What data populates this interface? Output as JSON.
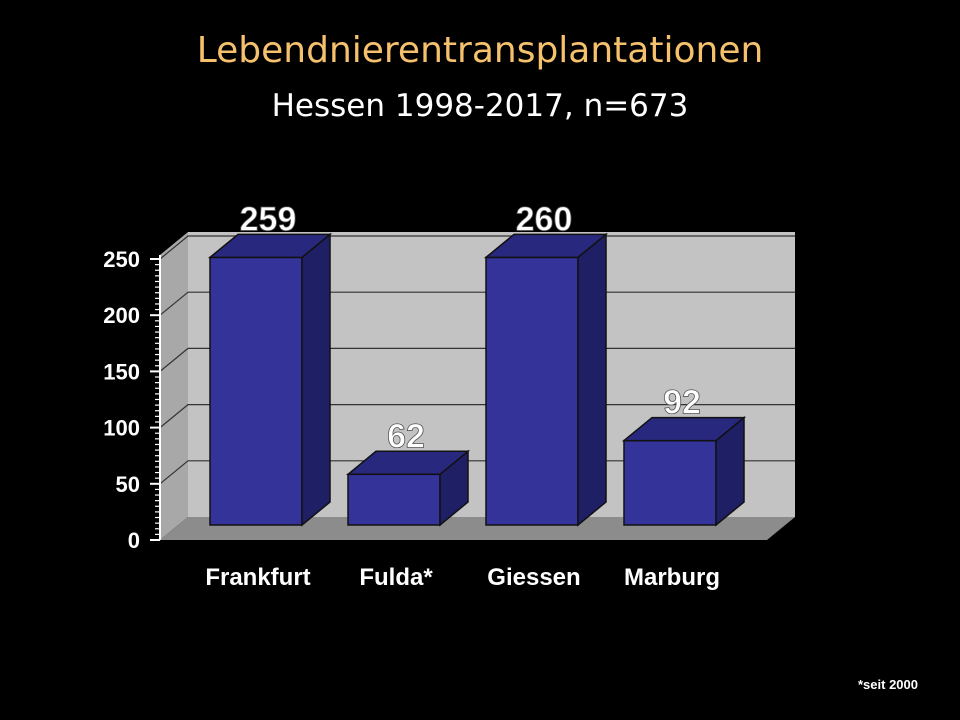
{
  "slide": {
    "title": "Lebendnierentransplantationen",
    "subtitle": "Hessen 1998-2017, n=673",
    "footnote": "*seit 2000"
  },
  "colors": {
    "background": "#000000",
    "title": "#f5c16c",
    "bar_front": "#33339a",
    "bar_side": "#1f1f66",
    "bar_top": "#28287e",
    "wall": "#c3c3c3",
    "floor": "#8c8c8c"
  },
  "chart_data": {
    "type": "bar",
    "title": "",
    "xlabel": "",
    "ylabel": "",
    "categories": [
      "Frankfurt",
      "Fulda*",
      "Giessen",
      "Marburg"
    ],
    "values": [
      259,
      62,
      260,
      92
    ],
    "data_labels": [
      "259",
      "62",
      "260",
      "92"
    ],
    "ylim": [
      0,
      250
    ],
    "yticks": [
      0,
      50,
      100,
      150,
      200,
      250
    ],
    "ytick_labels": [
      "0",
      "50",
      "100",
      "150",
      "200",
      "250"
    ],
    "grid": true,
    "legend": "none",
    "style": "3d-column"
  }
}
